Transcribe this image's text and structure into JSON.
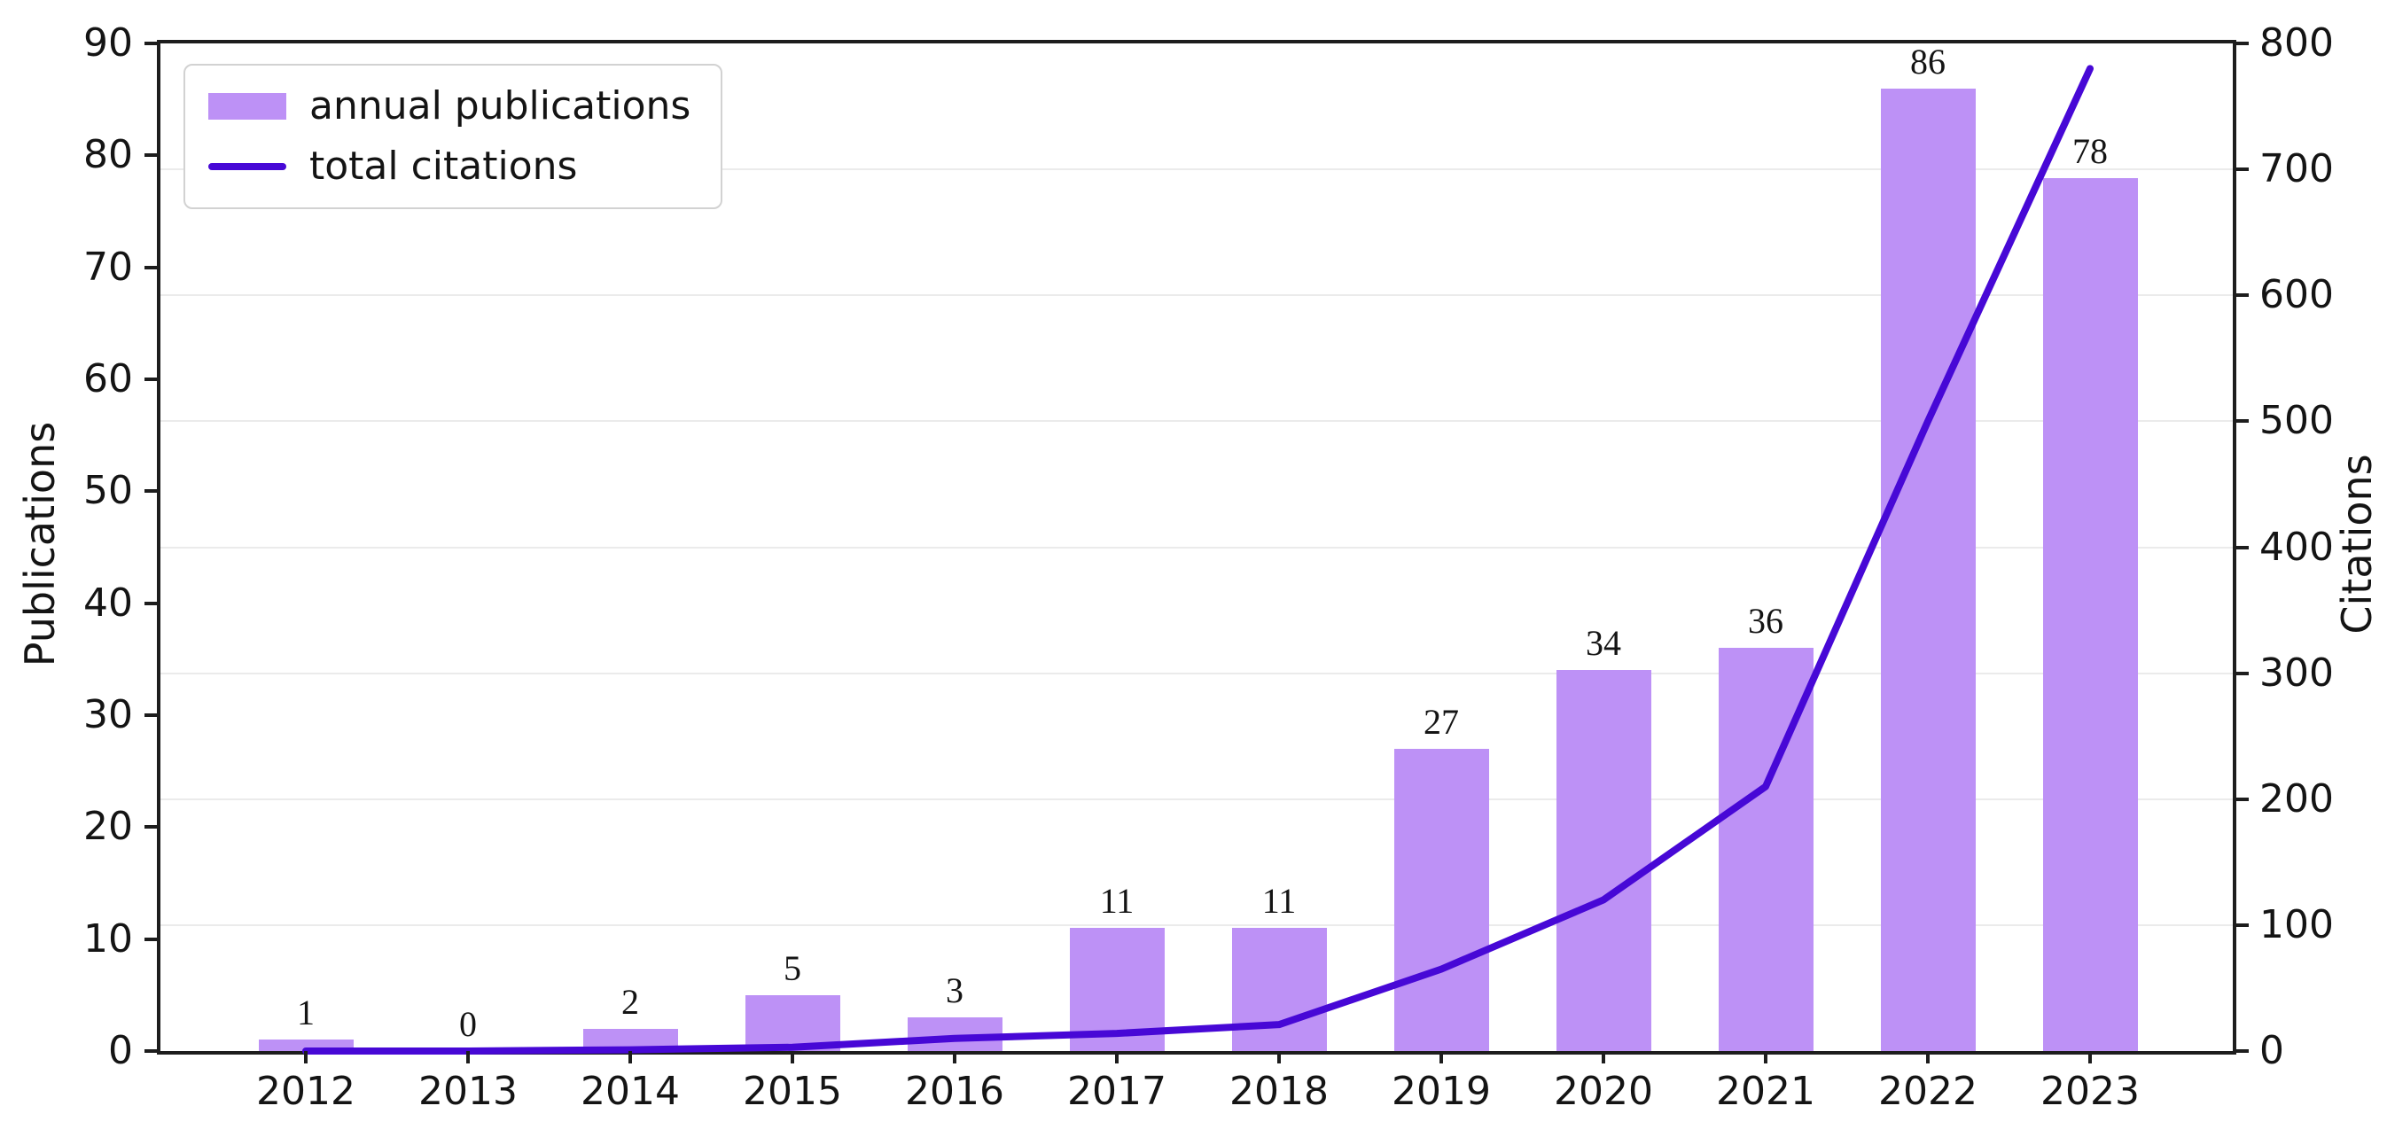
{
  "chart_data": {
    "type": "bar",
    "title": "",
    "categories": [
      "2012",
      "2013",
      "2014",
      "2015",
      "2016",
      "2017",
      "2018",
      "2019",
      "2020",
      "2021",
      "2022",
      "2023"
    ],
    "series": [
      {
        "name": "annual publications",
        "type": "bar",
        "axis": "left",
        "color": "#bd91f6",
        "values": [
          1,
          0,
          2,
          5,
          3,
          11,
          11,
          27,
          34,
          36,
          86,
          78
        ],
        "bar_labels_shown": true
      },
      {
        "name": "total citations",
        "type": "line",
        "axis": "right",
        "color": "#4708d6",
        "values": [
          0,
          0,
          1,
          3,
          10,
          14,
          21,
          65,
          120,
          210,
          500,
          780
        ]
      }
    ],
    "left_axis": {
      "label": "Publications",
      "range": [
        0,
        90
      ],
      "ticks": [
        0,
        10,
        20,
        30,
        40,
        50,
        60,
        70,
        80,
        90
      ]
    },
    "right_axis": {
      "label": "Citations",
      "range": [
        0,
        800
      ],
      "ticks": [
        0,
        100,
        200,
        300,
        400,
        500,
        600,
        700,
        800
      ]
    },
    "grid": {
      "horizontal": true,
      "aligned_to": "right_axis",
      "color": "#ebebeb"
    },
    "legend_position": "upper left",
    "spine_color": "#1d1d1d",
    "background": "#ffffff"
  }
}
